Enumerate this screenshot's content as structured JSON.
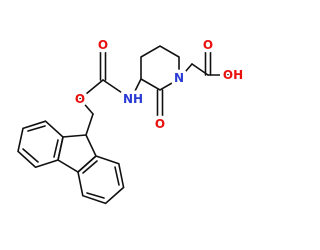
{
  "atoms": [
    {
      "label": "O"
    },
    {
      "label": "O"
    },
    {
      "label": "NH"
    },
    {
      "label": "N"
    },
    {
      "label": "O"
    },
    {
      "label": "O"
    },
    {
      "label": "OH"
    }
  ]
}
